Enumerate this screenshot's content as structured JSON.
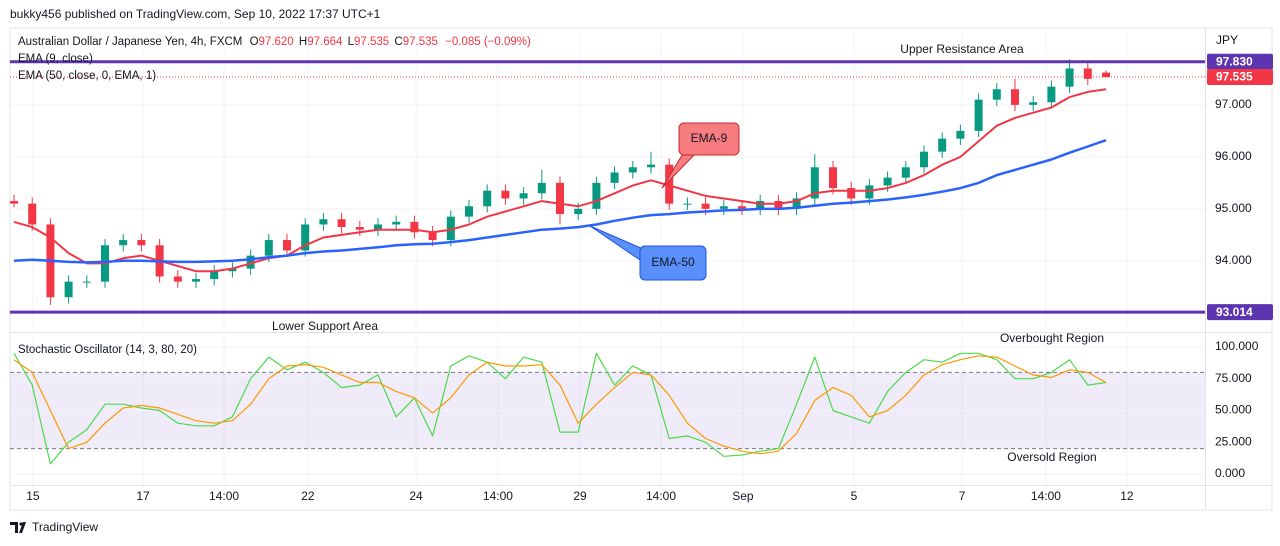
{
  "header": "bukky456 published on TradingView.com, Sep 10, 2022 17:37 UTC+1",
  "footer": "TradingView",
  "chart_data": [
    {
      "type": "candlestick",
      "title": "Australian Dollar / Japanese Yen, 4h, FXCM",
      "quote": [
        {
          "key": "O",
          "value": "97.620"
        },
        {
          "key": "H",
          "value": "97.664"
        },
        {
          "key": "L",
          "value": "97.535"
        },
        {
          "key": "C",
          "value": "97.535"
        }
      ],
      "change": "−0.085 (−0.09%)",
      "currency": "JPY",
      "up_color": "#089981",
      "down_color": "#f23645",
      "x": [
        0,
        1,
        2,
        3,
        4,
        5,
        6,
        7,
        8,
        9,
        10,
        11,
        12,
        13,
        14,
        15,
        16,
        17,
        18,
        19,
        20,
        21,
        22,
        23,
        24,
        25,
        26,
        27,
        28,
        29,
        30,
        31,
        32,
        33,
        34,
        35,
        36,
        37,
        38,
        39,
        40,
        41,
        42,
        43,
        44,
        45,
        46,
        47,
        48,
        49,
        50,
        51,
        52,
        53,
        54,
        55,
        56,
        57,
        58,
        59,
        60
      ],
      "open": [
        95.15,
        95.1,
        94.7,
        93.3,
        93.6,
        93.6,
        94.3,
        94.4,
        94.3,
        93.7,
        93.6,
        93.65,
        93.8,
        93.85,
        94.1,
        94.4,
        94.2,
        94.7,
        94.8,
        94.65,
        94.6,
        94.7,
        94.75,
        94.55,
        94.4,
        94.85,
        95.05,
        95.35,
        95.2,
        95.3,
        95.5,
        94.9,
        95.0,
        95.5,
        95.7,
        95.8,
        95.85,
        95.1,
        95.1,
        95.0,
        95.05,
        95.0,
        95.15,
        95.0,
        95.2,
        95.8,
        95.4,
        95.2,
        95.45,
        95.6,
        95.8,
        96.1,
        96.35,
        96.5,
        97.1,
        97.3,
        97.0,
        97.05,
        97.35,
        97.7,
        97.62
      ],
      "high": [
        95.27,
        95.22,
        94.82,
        93.72,
        93.72,
        94.42,
        94.52,
        94.52,
        94.42,
        93.82,
        93.77,
        93.92,
        93.97,
        94.22,
        94.52,
        94.52,
        94.82,
        94.92,
        94.92,
        94.77,
        94.82,
        94.87,
        94.87,
        94.67,
        94.97,
        95.17,
        95.47,
        95.47,
        95.42,
        95.75,
        95.62,
        95.12,
        95.62,
        95.82,
        95.92,
        96.1,
        95.97,
        95.22,
        95.22,
        95.17,
        95.17,
        95.27,
        95.27,
        95.32,
        96.05,
        95.92,
        95.52,
        95.57,
        95.72,
        95.92,
        96.22,
        96.47,
        96.62,
        97.22,
        97.42,
        97.5,
        97.17,
        97.47,
        97.88,
        97.82,
        97.664
      ],
      "low": [
        95.03,
        94.58,
        93.15,
        93.18,
        93.48,
        93.48,
        94.18,
        94.18,
        93.58,
        93.48,
        93.48,
        93.53,
        93.68,
        93.73,
        93.98,
        94.08,
        94.08,
        94.58,
        94.53,
        94.48,
        94.48,
        94.58,
        94.43,
        94.28,
        94.28,
        94.73,
        94.93,
        95.08,
        95.08,
        95.18,
        94.7,
        94.78,
        94.88,
        95.38,
        95.58,
        95.68,
        94.98,
        94.98,
        94.88,
        94.88,
        94.88,
        94.88,
        94.88,
        94.88,
        95.08,
        95.28,
        95.08,
        95.08,
        95.33,
        95.48,
        95.68,
        95.98,
        96.23,
        96.38,
        96.98,
        96.88,
        96.88,
        96.93,
        97.23,
        97.38,
        97.535
      ],
      "close": [
        95.1,
        94.7,
        93.3,
        93.6,
        93.6,
        94.3,
        94.4,
        94.3,
        93.7,
        93.6,
        93.65,
        93.8,
        93.85,
        94.1,
        94.4,
        94.2,
        94.7,
        94.8,
        94.65,
        94.6,
        94.7,
        94.75,
        94.55,
        94.4,
        94.85,
        95.05,
        95.35,
        95.2,
        95.3,
        95.5,
        94.9,
        95.0,
        95.5,
        95.7,
        95.8,
        95.85,
        95.1,
        95.1,
        95.0,
        95.05,
        95.0,
        95.15,
        95.0,
        95.2,
        95.8,
        95.4,
        95.2,
        95.45,
        95.6,
        95.8,
        96.1,
        96.35,
        96.5,
        97.1,
        97.3,
        97.0,
        97.05,
        97.35,
        97.7,
        97.5,
        97.535
      ],
      "series": [
        {
          "name": "EMA (9, close)",
          "color": "#f23645",
          "values": [
            94.75,
            94.65,
            94.45,
            94.15,
            93.95,
            93.95,
            94.05,
            94.1,
            94.0,
            93.9,
            93.8,
            93.8,
            93.85,
            93.95,
            94.05,
            94.1,
            94.3,
            94.45,
            94.5,
            94.55,
            94.6,
            94.6,
            94.6,
            94.55,
            94.6,
            94.7,
            94.85,
            94.95,
            95.05,
            95.15,
            95.1,
            95.05,
            95.15,
            95.3,
            95.45,
            95.55,
            95.45,
            95.35,
            95.25,
            95.2,
            95.15,
            95.1,
            95.1,
            95.15,
            95.3,
            95.35,
            95.35,
            95.35,
            95.4,
            95.5,
            95.65,
            95.85,
            96.0,
            96.3,
            96.6,
            96.75,
            96.85,
            96.95,
            97.15,
            97.25,
            97.3
          ]
        },
        {
          "name": "EMA (50, close, 0, EMA, 1)",
          "color": "#2962ff",
          "values": [
            94.0,
            94.02,
            94.0,
            93.98,
            93.97,
            93.98,
            94.0,
            94.0,
            93.99,
            93.98,
            93.98,
            93.99,
            94.0,
            94.03,
            94.07,
            94.1,
            94.15,
            94.18,
            94.2,
            94.23,
            94.26,
            94.3,
            94.32,
            94.33,
            94.36,
            94.4,
            94.45,
            94.5,
            94.55,
            94.6,
            94.62,
            94.65,
            94.7,
            94.77,
            94.83,
            94.88,
            94.9,
            94.93,
            94.95,
            94.97,
            94.98,
            95.0,
            95.0,
            95.02,
            95.06,
            95.1,
            95.12,
            95.15,
            95.18,
            95.22,
            95.27,
            95.33,
            95.4,
            95.5,
            95.65,
            95.75,
            95.85,
            95.95,
            96.08,
            96.2,
            96.32
          ]
        }
      ],
      "price_lines": [
        {
          "value": 97.83,
          "label": "97.830",
          "color": "#5e35b1",
          "style": "solid"
        },
        {
          "value": 97.535,
          "label": "97.535",
          "color": "#f23645",
          "style": "dotted"
        },
        {
          "value": 93.014,
          "label": "93.014",
          "color": "#5e35b1",
          "style": "solid"
        }
      ],
      "annotations": [
        "Upper Resistance Area",
        "Lower Support Area",
        "EMA-9",
        "EMA-50"
      ],
      "xlim": [
        -0.77,
        65.44
      ],
      "xticks": [
        {
          "value": 1.04,
          "label": "15"
        },
        {
          "value": 7.09,
          "label": "17"
        },
        {
          "value": 11.54,
          "label": "14:00"
        },
        {
          "value": 16.15,
          "label": "22"
        },
        {
          "value": 22.09,
          "label": "24"
        },
        {
          "value": 26.59,
          "label": "14:00"
        },
        {
          "value": 31.1,
          "label": "29"
        },
        {
          "value": 35.55,
          "label": "14:00"
        },
        {
          "value": 40.05,
          "label": "Sep"
        },
        {
          "value": 46.15,
          "label": "5"
        },
        {
          "value": 52.09,
          "label": "7"
        },
        {
          "value": 56.7,
          "label": "14:00"
        },
        {
          "value": 61.15,
          "label": "12"
        }
      ],
      "ylim": [
        92.67,
        98.44
      ],
      "yticks": [
        {
          "value": 94,
          "label": "94.000"
        },
        {
          "value": 95,
          "label": "95.000"
        },
        {
          "value": 96,
          "label": "96.000"
        },
        {
          "value": 97,
          "label": "97.000"
        }
      ],
      "grid": true
    },
    {
      "type": "line",
      "title": "Stochastic Oscillator (14, 3, 80, 20)",
      "series": [
        {
          "color": "#4cd94c",
          "values": [
            95,
            70,
            8,
            25,
            35,
            55,
            55,
            52,
            50,
            40,
            38,
            38,
            45,
            75,
            92,
            82,
            88,
            80,
            68,
            70,
            78,
            45,
            60,
            30,
            85,
            93,
            88,
            75,
            92,
            88,
            33,
            33,
            95,
            70,
            85,
            78,
            28,
            30,
            25,
            14,
            15,
            18,
            20,
            55,
            92,
            50,
            45,
            40,
            65,
            80,
            90,
            88,
            95,
            95,
            90,
            75,
            75,
            80,
            90,
            70,
            72
          ]
        },
        {
          "color": "#ff9800",
          "values": [
            90,
            80,
            50,
            20,
            25,
            40,
            52,
            54,
            52,
            47,
            42,
            40,
            42,
            55,
            75,
            85,
            86,
            84,
            78,
            72,
            72,
            65,
            60,
            48,
            60,
            78,
            88,
            85,
            85,
            86,
            70,
            40,
            55,
            68,
            80,
            78,
            62,
            40,
            28,
            22,
            18,
            16,
            18,
            32,
            58,
            68,
            62,
            45,
            50,
            62,
            78,
            86,
            90,
            93,
            92,
            85,
            78,
            76,
            82,
            80,
            72
          ]
        }
      ],
      "band": [
        20,
        80
      ],
      "band_color": "#7e57c2",
      "annotations": [
        "Overbought Region",
        "Oversold Region"
      ],
      "ylim": [
        -8.6,
        109.4
      ],
      "yticks": [
        {
          "value": 0,
          "label": "0.000"
        },
        {
          "value": 25,
          "label": "25.000"
        },
        {
          "value": 50,
          "label": "50.000"
        },
        {
          "value": 75,
          "label": "75.000"
        },
        {
          "value": 100,
          "label": "100.000"
        }
      ],
      "grid": true
    }
  ]
}
